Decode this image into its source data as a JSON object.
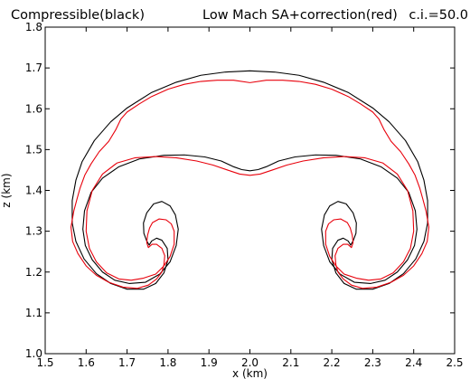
{
  "chart_data": {
    "type": "line",
    "title_left": "Compressible(black)",
    "title_center": "Low Mach SA+correction(red)",
    "title_right": "c.i.=50.0",
    "xlabel": "x (km)",
    "ylabel": "z (km)",
    "xlim": [
      1.5,
      2.5
    ],
    "ylim": [
      1.0,
      1.8
    ],
    "xticks": [
      "1.5",
      "1.6",
      "1.7",
      "1.8",
      "1.9",
      "2.0",
      "2.1",
      "2.2",
      "2.3",
      "2.4",
      "2.5"
    ],
    "yticks": [
      "1.0",
      "1.1",
      "1.2",
      "1.3",
      "1.4",
      "1.5",
      "1.6",
      "1.7",
      "1.8"
    ],
    "grid": false,
    "series": [
      {
        "name": "Compressible(black)",
        "color": "#000000",
        "left_contour": [
          [
            2.0,
            1.693
          ],
          [
            1.94,
            1.69
          ],
          [
            1.88,
            1.682
          ],
          [
            1.82,
            1.665
          ],
          [
            1.76,
            1.64
          ],
          [
            1.7,
            1.602
          ],
          [
            1.66,
            1.568
          ],
          [
            1.62,
            1.522
          ],
          [
            1.59,
            1.47
          ],
          [
            1.575,
            1.425
          ],
          [
            1.566,
            1.375
          ],
          [
            1.566,
            1.32
          ],
          [
            1.575,
            1.275
          ],
          [
            1.595,
            1.232
          ],
          [
            1.625,
            1.196
          ],
          [
            1.66,
            1.172
          ],
          [
            1.7,
            1.158
          ],
          [
            1.74,
            1.158
          ],
          [
            1.77,
            1.172
          ],
          [
            1.79,
            1.198
          ],
          [
            1.8,
            1.23
          ],
          [
            1.798,
            1.258
          ],
          [
            1.785,
            1.278
          ],
          [
            1.772,
            1.283
          ],
          [
            1.76,
            1.276
          ],
          [
            1.754,
            1.266
          ],
          [
            1.748,
            1.276
          ],
          [
            1.741,
            1.295
          ],
          [
            1.74,
            1.32
          ],
          [
            1.748,
            1.345
          ],
          [
            1.765,
            1.367
          ],
          [
            1.785,
            1.373
          ],
          [
            1.805,
            1.362
          ],
          [
            1.818,
            1.34
          ],
          [
            1.825,
            1.305
          ],
          [
            1.82,
            1.265
          ],
          [
            1.805,
            1.225
          ],
          [
            1.78,
            1.195
          ],
          [
            1.745,
            1.175
          ],
          [
            1.705,
            1.172
          ],
          [
            1.67,
            1.18
          ],
          [
            1.64,
            1.2
          ],
          [
            1.615,
            1.23
          ],
          [
            1.598,
            1.265
          ],
          [
            1.592,
            1.305
          ],
          [
            1.596,
            1.35
          ],
          [
            1.612,
            1.395
          ],
          [
            1.64,
            1.43
          ],
          [
            1.68,
            1.458
          ],
          [
            1.73,
            1.477
          ],
          [
            1.79,
            1.486
          ],
          [
            1.84,
            1.487
          ],
          [
            1.89,
            1.482
          ],
          [
            1.93,
            1.472
          ],
          [
            1.96,
            1.458
          ],
          [
            1.98,
            1.451
          ],
          [
            2.0,
            1.448
          ]
        ]
      },
      {
        "name": "Low Mach SA+correction(red)",
        "color": "#e8000b",
        "left_contour": [
          [
            2.0,
            1.664
          ],
          [
            1.96,
            1.67
          ],
          [
            1.92,
            1.67
          ],
          [
            1.88,
            1.667
          ],
          [
            1.84,
            1.66
          ],
          [
            1.8,
            1.648
          ],
          [
            1.76,
            1.63
          ],
          [
            1.73,
            1.612
          ],
          [
            1.7,
            1.592
          ],
          [
            1.685,
            1.575
          ],
          [
            1.672,
            1.548
          ],
          [
            1.655,
            1.52
          ],
          [
            1.632,
            1.495
          ],
          [
            1.612,
            1.465
          ],
          [
            1.597,
            1.438
          ],
          [
            1.585,
            1.405
          ],
          [
            1.578,
            1.38
          ],
          [
            1.57,
            1.35
          ],
          [
            1.563,
            1.31
          ],
          [
            1.567,
            1.275
          ],
          [
            1.58,
            1.245
          ],
          [
            1.6,
            1.215
          ],
          [
            1.625,
            1.192
          ],
          [
            1.655,
            1.175
          ],
          [
            1.69,
            1.163
          ],
          [
            1.725,
            1.16
          ],
          [
            1.752,
            1.168
          ],
          [
            1.772,
            1.183
          ],
          [
            1.785,
            1.2
          ],
          [
            1.79,
            1.218
          ],
          [
            1.792,
            1.24
          ],
          [
            1.785,
            1.258
          ],
          [
            1.772,
            1.268
          ],
          [
            1.761,
            1.268
          ],
          [
            1.752,
            1.26
          ],
          [
            1.748,
            1.272
          ],
          [
            1.75,
            1.29
          ],
          [
            1.755,
            1.308
          ],
          [
            1.762,
            1.321
          ],
          [
            1.778,
            1.33
          ],
          [
            1.795,
            1.328
          ],
          [
            1.808,
            1.318
          ],
          [
            1.815,
            1.3
          ],
          [
            1.815,
            1.268
          ],
          [
            1.805,
            1.238
          ],
          [
            1.79,
            1.215
          ],
          [
            1.77,
            1.195
          ],
          [
            1.74,
            1.185
          ],
          [
            1.71,
            1.18
          ],
          [
            1.68,
            1.183
          ],
          [
            1.65,
            1.198
          ],
          [
            1.625,
            1.225
          ],
          [
            1.608,
            1.258
          ],
          [
            1.6,
            1.3
          ],
          [
            1.602,
            1.35
          ],
          [
            1.615,
            1.4
          ],
          [
            1.64,
            1.44
          ],
          [
            1.675,
            1.467
          ],
          [
            1.72,
            1.48
          ],
          [
            1.77,
            1.483
          ],
          [
            1.82,
            1.48
          ],
          [
            1.87,
            1.472
          ],
          [
            1.91,
            1.462
          ],
          [
            1.945,
            1.45
          ],
          [
            1.975,
            1.44
          ],
          [
            2.0,
            1.437
          ]
        ]
      }
    ]
  }
}
